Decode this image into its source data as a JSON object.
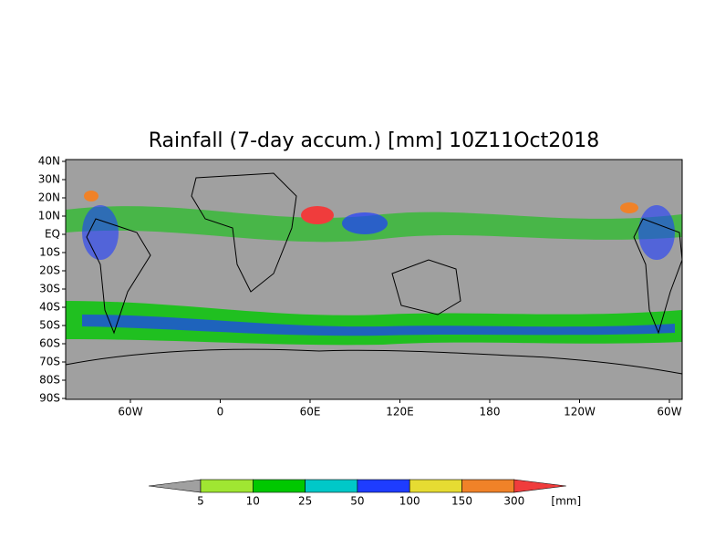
{
  "map": {
    "title": "Rainfall (7-day accum.) [mm] 10Z11Oct2018",
    "lat_labels": [
      "40N",
      "30N",
      "20N",
      "10N",
      "EQ",
      "10S",
      "20S",
      "30S",
      "40S",
      "50S",
      "60S",
      "70S",
      "80S",
      "90S"
    ],
    "lon_labels": [
      "60W",
      "0",
      "60E",
      "120E",
      "180",
      "120W",
      "60W"
    ],
    "colorbar": {
      "labels": [
        5,
        10,
        25,
        50,
        100,
        150,
        300
      ],
      "colors": [
        "#a0a0a0",
        "#a0e632",
        "#00c800",
        "#00c8c8",
        "#1e3cff",
        "#e6dc32",
        "#f08228",
        "#f03c3c"
      ],
      "unit": "[mm]"
    }
  }
}
